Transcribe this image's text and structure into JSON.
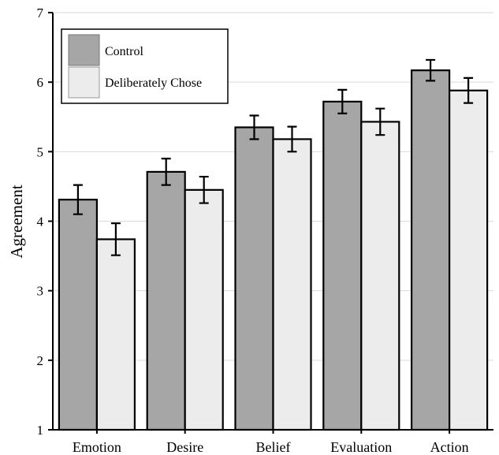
{
  "chart_data": {
    "type": "bar",
    "categories": [
      "Emotion",
      "Desire",
      "Belief",
      "Evaluation",
      "Action"
    ],
    "series": [
      {
        "name": "Control",
        "color": "#a6a6a6",
        "values": [
          4.31,
          4.71,
          5.35,
          5.72,
          6.17
        ],
        "error": [
          0.21,
          0.19,
          0.17,
          0.17,
          0.15
        ]
      },
      {
        "name": "Deliberately Chose",
        "color": "#ececec",
        "values": [
          3.74,
          4.45,
          5.18,
          5.43,
          5.88
        ],
        "error": [
          0.23,
          0.19,
          0.18,
          0.19,
          0.18
        ]
      }
    ],
    "ylabel": "Agreement",
    "xlabel": "",
    "ylim": [
      1,
      7
    ],
    "yticks": [
      1,
      2,
      3,
      4,
      5,
      6,
      7
    ],
    "grid": true,
    "legend_position": "top-left"
  }
}
